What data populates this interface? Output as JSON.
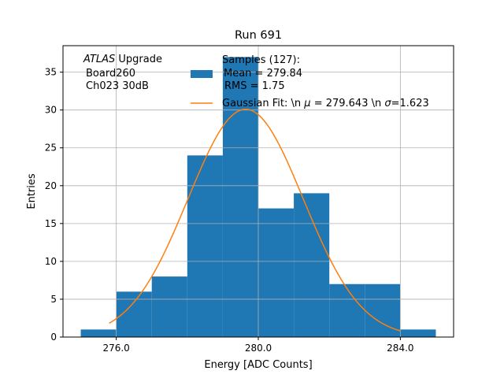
{
  "chart_data": {
    "type": "bar",
    "title": "Run 691",
    "xlabel": "Energy [ADC Counts]",
    "ylabel": "Entries",
    "xlim": [
      274.5,
      285.5
    ],
    "ylim": [
      0,
      38.5
    ],
    "xticks": [
      276.0,
      280.0,
      284.0
    ],
    "xtick_labels": [
      "276.0",
      "280.0",
      "284.0"
    ],
    "yticks": [
      0,
      5,
      10,
      15,
      20,
      25,
      30,
      35
    ],
    "grid": true,
    "bins": [
      {
        "x0": 275,
        "x1": 276,
        "count": 1
      },
      {
        "x0": 276,
        "x1": 277,
        "count": 6
      },
      {
        "x0": 277,
        "x1": 278,
        "count": 8
      },
      {
        "x0": 278,
        "x1": 279,
        "count": 24
      },
      {
        "x0": 279,
        "x1": 280,
        "count": 37
      },
      {
        "x0": 280,
        "x1": 281,
        "count": 17
      },
      {
        "x0": 281,
        "x1": 282,
        "count": 19
      },
      {
        "x0": 282,
        "x1": 283,
        "count": 7
      },
      {
        "x0": 283,
        "x1": 284,
        "count": 7
      },
      {
        "x0": 284,
        "x1": 285,
        "count": 1
      }
    ],
    "fit": {
      "mu": 279.643,
      "sigma": 1.623,
      "amplitude": 30.1,
      "x_from": 275.8,
      "x_to": 284.0
    },
    "colors": {
      "bars": "#1f77b4",
      "fit": "#ff7f0e",
      "grid": "#b0b0b0"
    },
    "annotation": {
      "atlas": "ATLAS",
      "upgrade": " Upgrade",
      "line2": "Board260",
      "line3": "Ch023 30dB"
    },
    "legend": {
      "placement": "top-right",
      "samples": [
        "Samples (127):",
        "Mean = 279.84",
        "RMS = 1.75"
      ],
      "fit_prefix": "Gaussian Fit: \\n ",
      "fit_mu_sym": "μ",
      "fit_mid": " = 279.643 \\n ",
      "fit_sigma_sym": "σ",
      "fit_suffix": "=1.623"
    }
  }
}
